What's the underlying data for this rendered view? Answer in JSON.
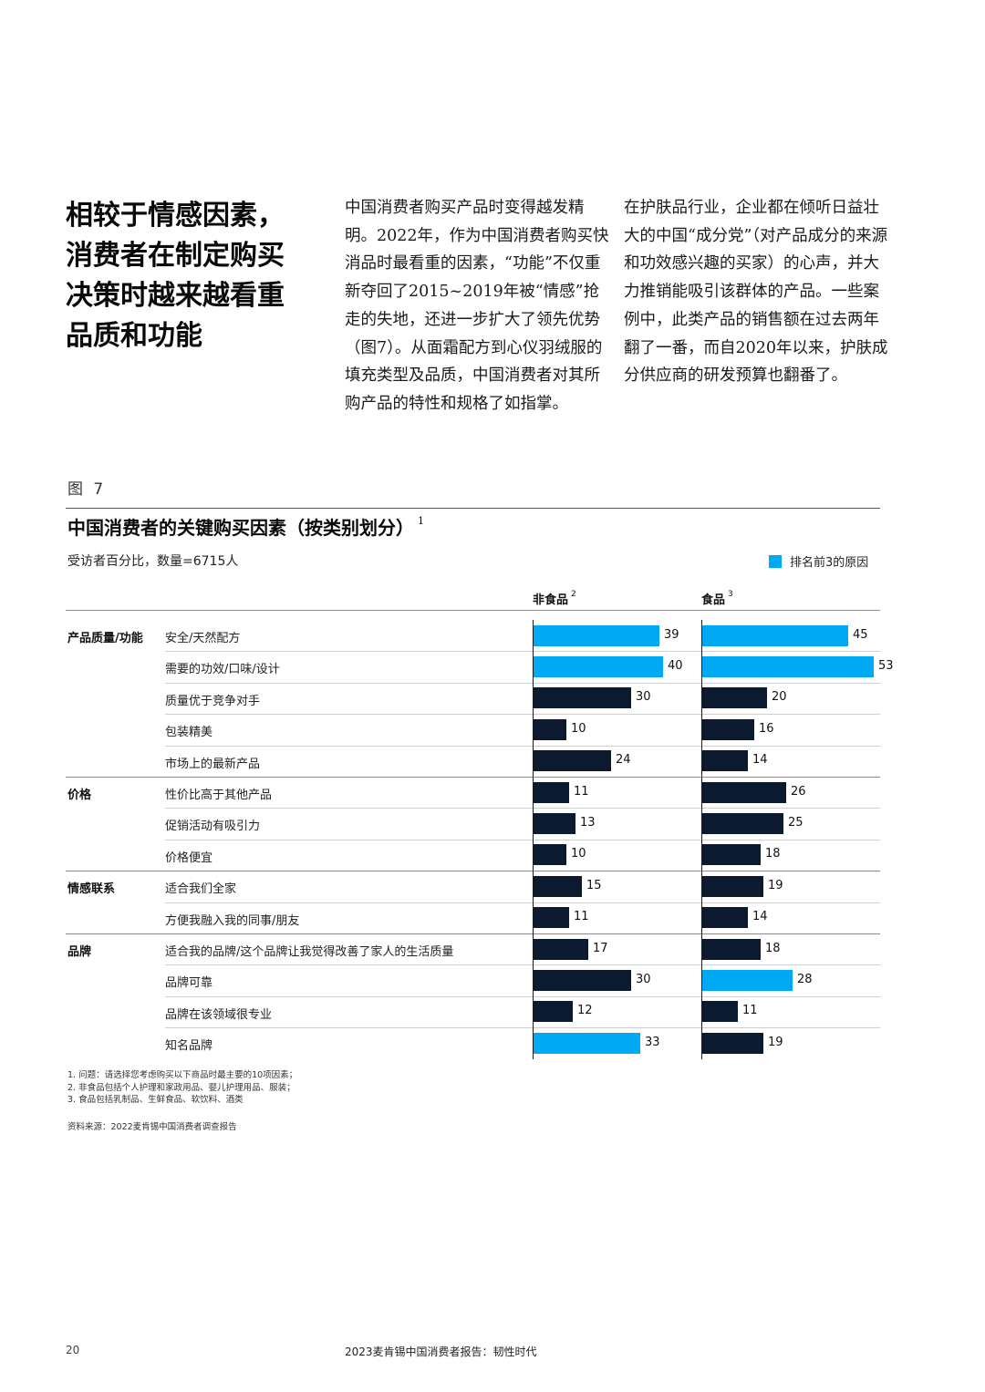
{
  "headline": "相较于情感因素，消费者在制定购买决策时越来越看重品质和功能",
  "body_col1": "中国消费者购买产品时变得越发精明。2022年，作为中国消费者购买快消品时最看重的因素，“功能”不仅重新夺回了2015~2019年被“情感”抢走的失地，还进一步扩大了领先优势（图7）。从面霜配方到心仪羽绒服的填充类型及品质，中国消费者对其所购产品的特性和规格了如指掌。",
  "body_col2": "在护肤品行业，企业都在倾听日益壮大的中国“成分党”（对产品成分的来源和功效感兴趣的买家）的心声，并大力推销能吸引该群体的产品。一些案例中，此类产品的销售额在过去两年翻了一番，而自2020年以来，护肤成分供应商的研发预算也翻番了。",
  "figure_label": "图 7",
  "chart_title": "中国消费者的关键购买因素（按类别划分）",
  "chart_title_sup": "1",
  "chart_subtitle": "受访者百分比，数量=6715人",
  "legend_label": "排名前3的原因",
  "col_nonfood": "非食品",
  "col_nonfood_sup": "2",
  "col_food": "食品",
  "col_food_sup": "3",
  "colors": {
    "highlight": "#00a9f4",
    "base": "#0b1a2e"
  },
  "chart_data": {
    "type": "bar",
    "orientation": "horizontal",
    "categories": [
      "安全/天然配方",
      "需要的功效/口味/设计",
      "质量优于竞争对手",
      "包装精美",
      "市场上的最新产品",
      "性价比高于其他产品",
      "促销活动有吸引力",
      "价格便宜",
      "适合我们全家",
      "方便我融入我的同事/朋友",
      "适合我的品牌/这个品牌让我觉得改善了家人的生活质量",
      "品牌可靠",
      "品牌在该领域很专业",
      "知名品牌"
    ],
    "groups": [
      {
        "name": "产品质量/功能",
        "start": 0
      },
      {
        "name": "价格",
        "start": 5
      },
      {
        "name": "情感联系",
        "start": 8
      },
      {
        "name": "品牌",
        "start": 10
      }
    ],
    "series": [
      {
        "name": "非食品",
        "values": [
          39,
          40,
          30,
          10,
          24,
          11,
          13,
          10,
          15,
          11,
          17,
          30,
          12,
          33
        ],
        "top3": [
          true,
          true,
          false,
          false,
          false,
          false,
          false,
          false,
          false,
          false,
          false,
          false,
          false,
          true
        ]
      },
      {
        "name": "食品",
        "values": [
          45,
          53,
          20,
          16,
          14,
          26,
          25,
          18,
          19,
          14,
          18,
          28,
          11,
          19
        ],
        "top3": [
          true,
          true,
          false,
          false,
          false,
          false,
          false,
          false,
          false,
          false,
          false,
          true,
          false,
          false
        ]
      }
    ],
    "xlim": [
      0,
      53
    ]
  },
  "notes": [
    "1. 问题：请选择您考虑购买以下商品时最主要的10项因素；",
    "2. 非食品包括个人护理和家政用品、婴儿护理用品、服装；",
    "3. 食品包括乳制品、生鲜食品、软饮料、酒类"
  ],
  "source": "资料来源：2022麦肯锡中国消费者调查报告",
  "page_number": "20",
  "footer_title": "2023麦肯锡中国消费者报告：韧性时代"
}
